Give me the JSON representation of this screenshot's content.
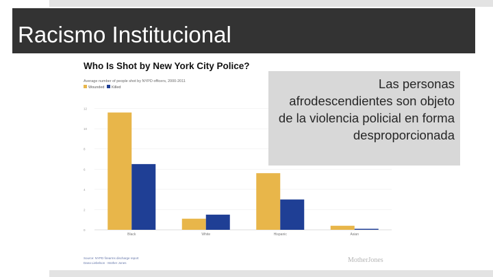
{
  "slide": {
    "title": "Racismo Institucional",
    "callout": "Las personas afrodescendientes son objeto de la violencia policial en forma desproporcionada",
    "accent_color": "#333333",
    "callout_bg": "#d8d8d8"
  },
  "chart_data": {
    "type": "bar",
    "title": "Who Is Shot by New York City Police?",
    "subtitle": "Average number of people shot by NYPD officers, 2000-2011",
    "categories": [
      "Black",
      "White",
      "Hispanic",
      "Asian"
    ],
    "series": [
      {
        "name": "Wounded",
        "color": "#e8b64a",
        "values": [
          11.6,
          1.1,
          5.6,
          0.4
        ]
      },
      {
        "name": "Killed",
        "color": "#1f3f95",
        "values": [
          6.5,
          1.5,
          3.0,
          0.1
        ]
      }
    ],
    "ylim": [
      0,
      14
    ],
    "yticks": [
      0,
      2,
      4,
      6,
      8,
      10,
      12
    ],
    "xlabel": "",
    "ylabel": "",
    "legend_position": "top-left",
    "source": "Source: NYPD firearms discharge report",
    "credit": "Dana Liebelson · Mother Jones",
    "brand": "MotherJones"
  }
}
